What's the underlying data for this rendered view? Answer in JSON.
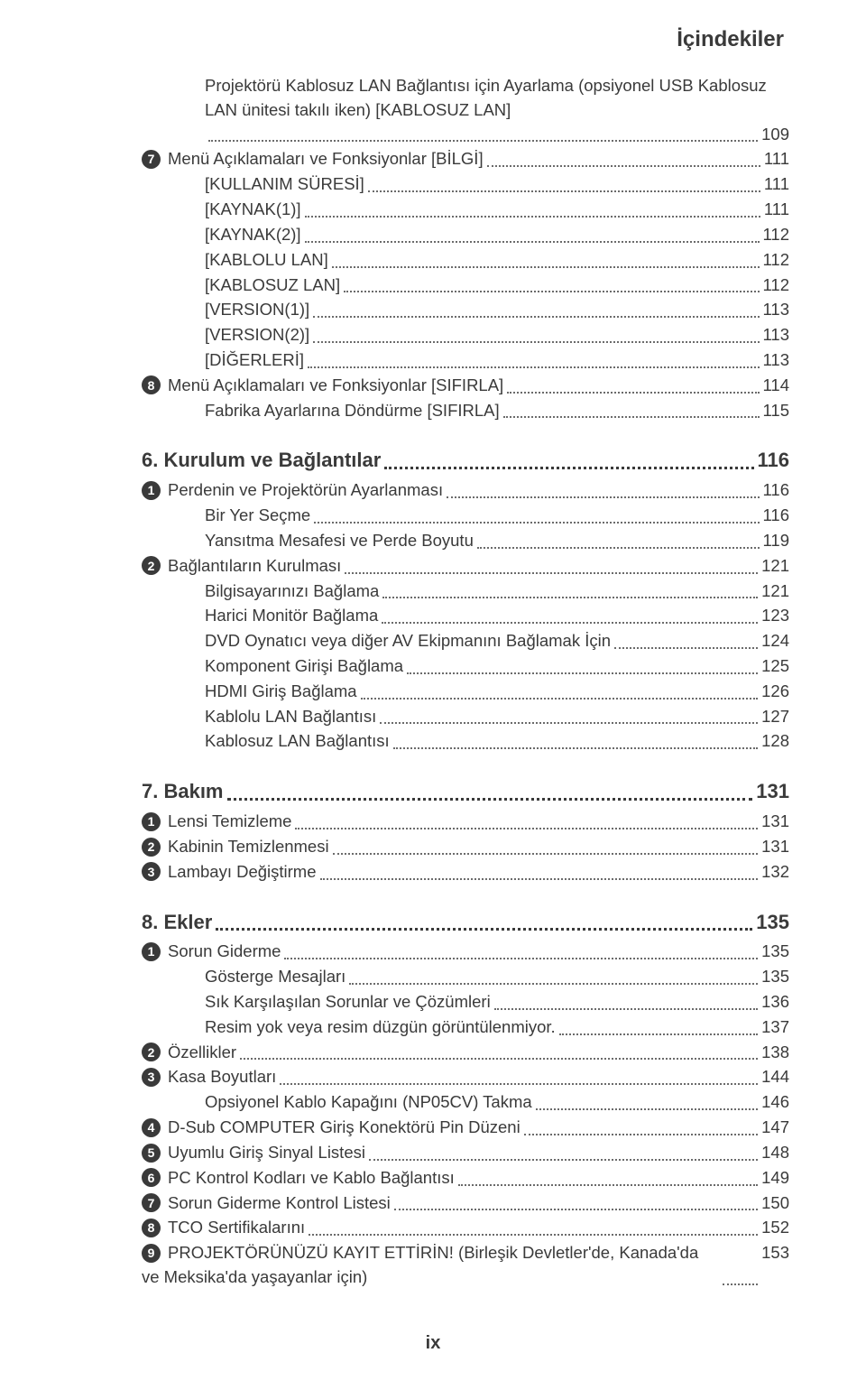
{
  "header": "İçindekiler",
  "footer": "ix",
  "colors": {
    "text": "#3a3a3a",
    "dot": "#6b6b6b",
    "bullet_bg": "#3a3a3a",
    "bullet_fg": "#ffffff",
    "background": "#ffffff"
  },
  "toc": [
    {
      "type": "wrap",
      "indent": 2,
      "label": "Projektörü Kablosuz LAN Bağlantısı için Ayarlama (opsiyonel USB Kablosuz LAN ünitesi takılı iken) [KABLOSUZ LAN]",
      "page": "109"
    },
    {
      "type": "item",
      "indent": 1,
      "bullet": "7",
      "label": "Menü Açıklamaları ve Fonksiyonlar [BİLGİ]",
      "page": "111"
    },
    {
      "type": "item",
      "indent": 2,
      "label": "[KULLANIM SÜRESİ]",
      "page": "111"
    },
    {
      "type": "item",
      "indent": 2,
      "label": "[KAYNAK(1)]",
      "page": "111"
    },
    {
      "type": "item",
      "indent": 2,
      "label": "[KAYNAK(2)]",
      "page": "112"
    },
    {
      "type": "item",
      "indent": 2,
      "label": "[KABLOLU LAN]",
      "page": "112"
    },
    {
      "type": "item",
      "indent": 2,
      "label": "[KABLOSUZ LAN]",
      "page": "112"
    },
    {
      "type": "item",
      "indent": 2,
      "label": "[VERSION(1)]",
      "page": "113"
    },
    {
      "type": "item",
      "indent": 2,
      "label": "[VERSION(2)]",
      "page": "113"
    },
    {
      "type": "item",
      "indent": 2,
      "label": "[DİĞERLERİ]",
      "page": "113"
    },
    {
      "type": "item",
      "indent": 1,
      "bullet": "8",
      "label": "Menü Açıklamaları ve Fonksiyonlar [SIFIRLA]",
      "page": "114"
    },
    {
      "type": "item",
      "indent": 2,
      "label": "Fabrika Ayarlarına Döndürme [SIFIRLA]",
      "page": "115"
    },
    {
      "type": "section",
      "label": "6. Kurulum ve Bağlantılar",
      "page": "116"
    },
    {
      "type": "item",
      "indent": 1,
      "bullet": "1",
      "label": "Perdenin ve Projektörün Ayarlanması",
      "page": "116"
    },
    {
      "type": "item",
      "indent": 2,
      "label": "Bir Yer Seçme",
      "page": "116"
    },
    {
      "type": "item",
      "indent": 2,
      "label": "Yansıtma Mesafesi ve Perde Boyutu",
      "page": "119"
    },
    {
      "type": "item",
      "indent": 1,
      "bullet": "2",
      "label": "Bağlantıların Kurulması",
      "page": "121"
    },
    {
      "type": "item",
      "indent": 2,
      "label": "Bilgisayarınızı Bağlama",
      "page": "121"
    },
    {
      "type": "item",
      "indent": 2,
      "label": "Harici Monitör Bağlama",
      "page": "123"
    },
    {
      "type": "item",
      "indent": 2,
      "label": "DVD Oynatıcı veya diğer AV Ekipmanını Bağlamak İçin",
      "page": "124"
    },
    {
      "type": "item",
      "indent": 2,
      "label": "Komponent Girişi Bağlama",
      "page": "125"
    },
    {
      "type": "item",
      "indent": 2,
      "label": "HDMI Giriş Bağlama",
      "page": "126"
    },
    {
      "type": "item",
      "indent": 2,
      "label": "Kablolu LAN Bağlantısı",
      "page": "127"
    },
    {
      "type": "item",
      "indent": 2,
      "label": "Kablosuz LAN Bağlantısı",
      "page": "128"
    },
    {
      "type": "section",
      "label": "7. Bakım",
      "page": "131"
    },
    {
      "type": "item",
      "indent": 1,
      "bullet": "1",
      "label": "Lensi Temizleme",
      "page": "131"
    },
    {
      "type": "item",
      "indent": 1,
      "bullet": "2",
      "label": "Kabinin Temizlenmesi",
      "page": "131"
    },
    {
      "type": "item",
      "indent": 1,
      "bullet": "3",
      "label": "Lambayı Değiştirme",
      "page": "132"
    },
    {
      "type": "section",
      "label": "8. Ekler",
      "page": "135"
    },
    {
      "type": "item",
      "indent": 1,
      "bullet": "1",
      "label": "Sorun Giderme",
      "page": "135"
    },
    {
      "type": "item",
      "indent": 2,
      "label": "Gösterge Mesajları",
      "page": "135"
    },
    {
      "type": "item",
      "indent": 2,
      "label": "Sık Karşılaşılan Sorunlar ve Çözümleri",
      "page": "136"
    },
    {
      "type": "item",
      "indent": 2,
      "label": "Resim yok veya resim düzgün görüntülenmiyor.",
      "page": "137"
    },
    {
      "type": "item",
      "indent": 1,
      "bullet": "2",
      "label": "Özellikler",
      "page": "138"
    },
    {
      "type": "item",
      "indent": 1,
      "bullet": "3",
      "label": "Kasa Boyutları",
      "page": "144"
    },
    {
      "type": "item",
      "indent": 2,
      "label": "Opsiyonel Kablo Kapağını (NP05CV) Takma",
      "page": "146"
    },
    {
      "type": "item",
      "indent": 1,
      "bullet": "4",
      "label": "D-Sub COMPUTER Giriş Konektörü Pin Düzeni",
      "page": "147"
    },
    {
      "type": "item",
      "indent": 1,
      "bullet": "5",
      "label": "Uyumlu Giriş Sinyal Listesi",
      "page": "148"
    },
    {
      "type": "item",
      "indent": 1,
      "bullet": "6",
      "label": "PC Kontrol Kodları ve Kablo Bağlantısı",
      "page": "149"
    },
    {
      "type": "item",
      "indent": 1,
      "bullet": "7",
      "label": "Sorun Giderme Kontrol Listesi",
      "page": "150"
    },
    {
      "type": "item",
      "indent": 1,
      "bullet": "8",
      "label": "TCO Sertifikalarını",
      "page": "152"
    },
    {
      "type": "wrap",
      "indent": 1,
      "bullet": "9",
      "label": "PROJEKTÖRÜNÜZÜ KAYIT ETTİRİN! (Birleşik Devletler'de, Kanada'da ve Meksika'da yaşayanlar için)",
      "page": "153"
    }
  ]
}
